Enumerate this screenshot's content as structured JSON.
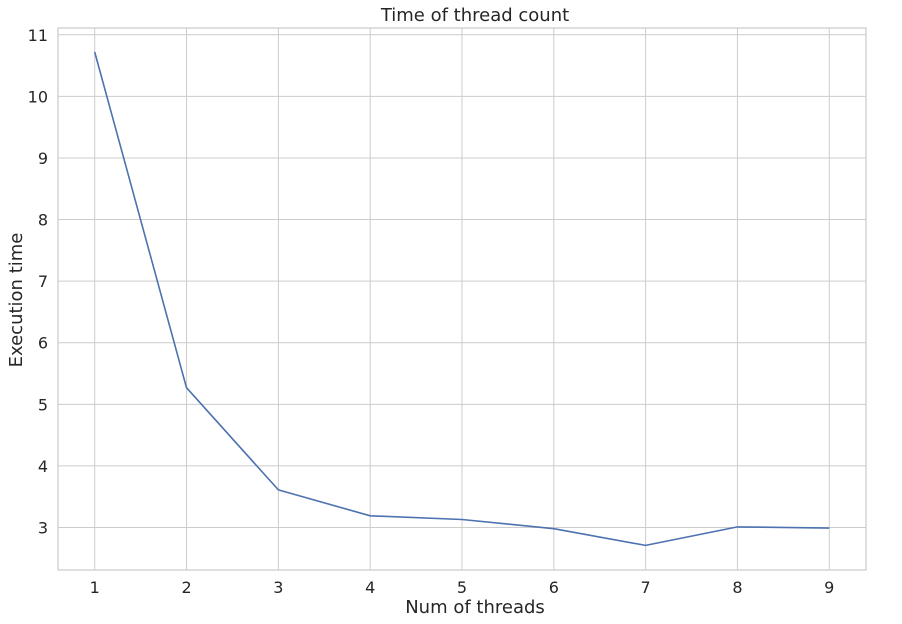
{
  "chart_data": {
    "type": "line",
    "title": "Time of thread count",
    "xlabel": "Num of threads",
    "ylabel": "Execution time",
    "x": [
      1,
      2,
      3,
      4,
      5,
      6,
      7,
      8,
      9
    ],
    "series": [
      {
        "values": [
          10.72,
          5.27,
          3.61,
          3.19,
          3.13,
          2.98,
          2.71,
          3.01,
          2.99
        ]
      }
    ],
    "x_ticks": [
      1,
      2,
      3,
      4,
      5,
      6,
      7,
      8,
      9
    ],
    "y_ticks": [
      3,
      4,
      5,
      6,
      7,
      8,
      9,
      10,
      11
    ],
    "xlim": [
      0.6,
      9.4
    ],
    "ylim": [
      2.31,
      11.11
    ],
    "grid": true,
    "legend": "none",
    "colors": {
      "line": "#4c72b0",
      "grid": "#cccccc",
      "spine": "#cccccc",
      "text": "#262626"
    }
  }
}
